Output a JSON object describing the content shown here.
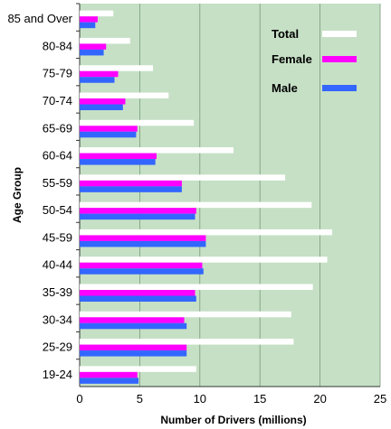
{
  "chart_data": {
    "type": "bar",
    "orientation": "horizontal",
    "xlabel": "Number of Drivers (millions)",
    "ylabel": "Age Group",
    "xlim": [
      0,
      25
    ],
    "xticks": [
      "0",
      "5",
      "10",
      "15",
      "20",
      "25"
    ],
    "grid": "vertical",
    "legend_position": "top-right",
    "background_color": "#c6e0c6",
    "categories": [
      "85 and Over",
      "80-84",
      "75-79",
      "70-74",
      "65-69",
      "60-64",
      "55-59",
      "50-54",
      "45-59",
      "40-44",
      "35-39",
      "30-34",
      "25-29",
      "19-24"
    ],
    "series": [
      {
        "name": "Total",
        "color": "#ffffff",
        "values": [
          2.8,
          4.2,
          6.1,
          7.4,
          9.5,
          12.8,
          17.1,
          19.3,
          21.0,
          20.6,
          19.4,
          17.6,
          17.8,
          9.7
        ]
      },
      {
        "name": "Female",
        "color": "#ff00ff",
        "values": [
          1.5,
          2.2,
          3.2,
          3.8,
          4.8,
          6.4,
          8.5,
          9.7,
          10.5,
          10.2,
          9.6,
          8.7,
          8.9,
          4.8
        ]
      },
      {
        "name": "Male",
        "color": "#3366ff",
        "values": [
          1.3,
          2.0,
          2.9,
          3.6,
          4.7,
          6.3,
          8.5,
          9.6,
          10.5,
          10.3,
          9.7,
          8.9,
          8.9,
          4.9
        ]
      }
    ]
  }
}
